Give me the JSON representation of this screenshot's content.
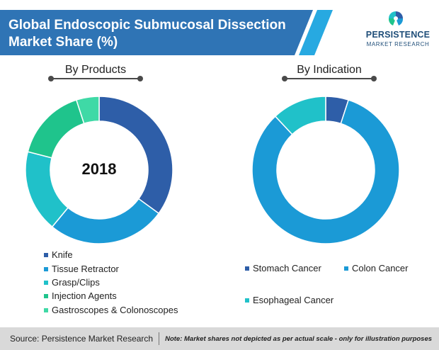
{
  "title": {
    "line1": "Global Endoscopic Submucosal Dissection",
    "line2": "Market Share (%)"
  },
  "logo": {
    "brand": "PERSISTENCE",
    "sub": "MARKET RESEARCH"
  },
  "colors": {
    "banner": "#2f74b5",
    "banner_stripe": "#27a9e1",
    "stomach_cancer": "#2e5ea8",
    "colon_cancer": "#1b9ad6",
    "esophageal_cancer": "#20c1c9",
    "knife": "#2e5ea8",
    "tissue_retractor": "#1b9ad6",
    "grasp_clips": "#20c1c9",
    "injection_agents": "#1fc48c",
    "gastroscopes_colonoscopes": "#3fd9a6"
  },
  "chart_data": [
    {
      "type": "pie",
      "title": "By Products",
      "center_label": "2018",
      "categories": [
        "Knife",
        "Tissue Retractor",
        "Grasp/Clips",
        "Injection Agents",
        "Gastroscopes & Colonoscopes"
      ],
      "values": [
        35,
        26,
        18,
        16,
        5
      ],
      "legend": "bottom"
    },
    {
      "type": "pie",
      "title": "By Indication",
      "categories": [
        "Stomach Cancer",
        "Colon Cancer",
        "Esophageal Cancer"
      ],
      "values": [
        5,
        83,
        12
      ],
      "legend": "bottom"
    }
  ],
  "footer": {
    "source": "Source: Persistence Market Research",
    "note": "Note: Market shares not depicted as per actual scale - only for illustration purposes"
  }
}
